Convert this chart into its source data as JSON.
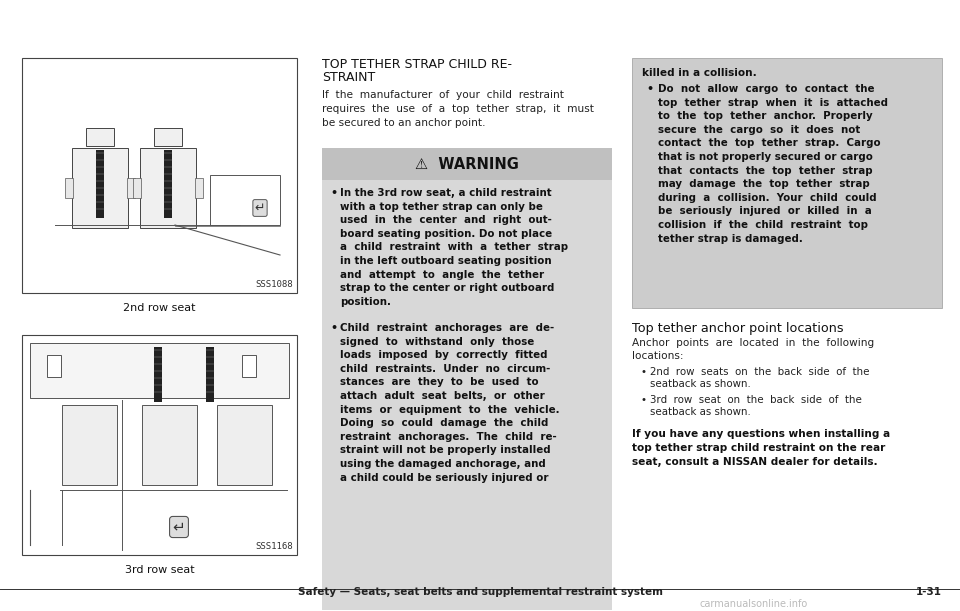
{
  "bg_color": "#ffffff",
  "image1_label": "2nd row seat",
  "image1_code": "SSS1088",
  "image2_label": "3rd row seat",
  "image2_code": "SSS1168",
  "title_line1": "TOP TETHER STRAP CHILD RE-",
  "title_line2": "STRAINT",
  "intro_text": "If  the  manufacturer  of  your  child  restraint\nrequires  the  use  of  a  top  tether  strap,  it  must\nbe secured to an anchor point.",
  "warning_header": "⚠  WARNING",
  "warning_item1": "In the 3rd row seat, a child restraint\nwith a top tether strap can only be\nused  in  the  center  and  right  out-\nboard seating position. Do not place\na  child  restraint  with  a  tether  strap\nin the left outboard seating position\nand  attempt  to  angle  the  tether\nstrap to the center or right outboard\nposition.",
  "warning_item2": "Child  restraint  anchorages  are  de-\nsigned  to  withstand  only  those\nloads  imposed  by  correctly  fitted\nchild  restraints.  Under  no  circum-\nstances  are  they  to  be  used  to\nattach  adult  seat  belts,  or  other\nitems  or  equipment  to  the  vehicle.\nDoing  so  could  damage  the  child\nrestraint  anchorages.  The  child  re-\nstraint will not be properly installed\nusing the damaged anchorage, and\na child could be seriously injured or",
  "right_box_line1": "killed in a collision.",
  "right_box_bullet": "Do  not  allow  cargo  to  contact  the\ntop  tether  strap  when  it  is  attached\nto  the  top  tether  anchor.  Properly\nsecure  the  cargo  so  it  does  not\ncontact  the  top  tether  strap.  Cargo\nthat is not properly secured or cargo\nthat  contacts  the  top  tether  strap\nmay  damage  the  top  tether  strap\nduring  a  collision.  Your  child  could\nbe  seriously  injured  or  killed  in  a\ncollision  if  the  child  restraint  top\ntether strap is damaged.",
  "anchor_title": "Top tether anchor point locations",
  "anchor_intro": "Anchor  points  are  located  in  the  following\nlocations:",
  "anchor_item1_line1": "2nd  row  seats  on  the  back  side  of  the",
  "anchor_item1_line2": "seatback as shown.",
  "anchor_item2_line1": "3rd  row  seat  on  the  back  side  of  the",
  "anchor_item2_line2": "seatback as shown.",
  "anchor_bold": "If you have any questions when installing a\ntop tether strap child restraint on the rear\nseat, consult a NISSAN dealer for details.",
  "footer_text": "Safety — Seats, seat belts and supplemental restraint system",
  "footer_page": "1-31",
  "watermark": "carmanualsonline.info"
}
